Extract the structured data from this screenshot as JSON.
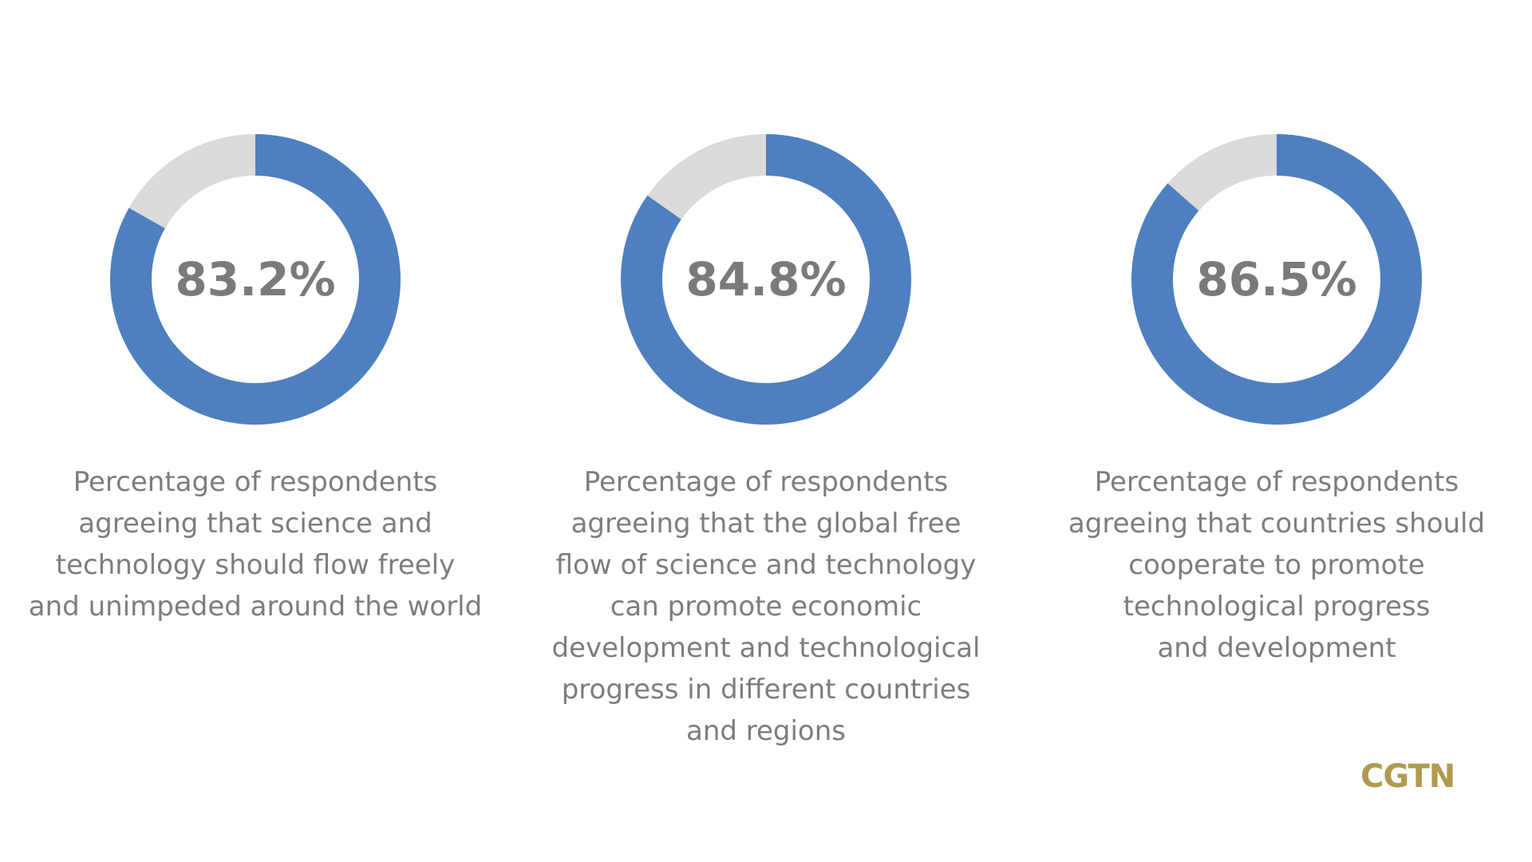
{
  "colors": {
    "filled": "#4e7fbf",
    "remaining": "#dadada",
    "text": "#7d7d7d",
    "logo": "#b09a4e",
    "background": "#ffffff"
  },
  "chart_data": [
    {
      "type": "pie",
      "donut": true,
      "values": [
        83.2,
        16.8
      ],
      "center_label": "83.2%",
      "caption": "Percentage of respondents\nagreeing that science and\ntechnology should flow freely\nand unimpeded around the world"
    },
    {
      "type": "pie",
      "donut": true,
      "values": [
        84.8,
        15.2
      ],
      "center_label": "84.8%",
      "caption": "Percentage of respondents\nagreeing that the global free\nflow of science and technology\ncan promote economic\ndevelopment and technological\nprogress in different countries\nand regions"
    },
    {
      "type": "pie",
      "donut": true,
      "values": [
        86.5,
        13.5
      ],
      "center_label": "86.5%",
      "caption": "Percentage of respondents\nagreeing that countries should\ncooperate to promote\ntechnological progress\nand development"
    }
  ],
  "logo": {
    "text": "CGTN"
  }
}
